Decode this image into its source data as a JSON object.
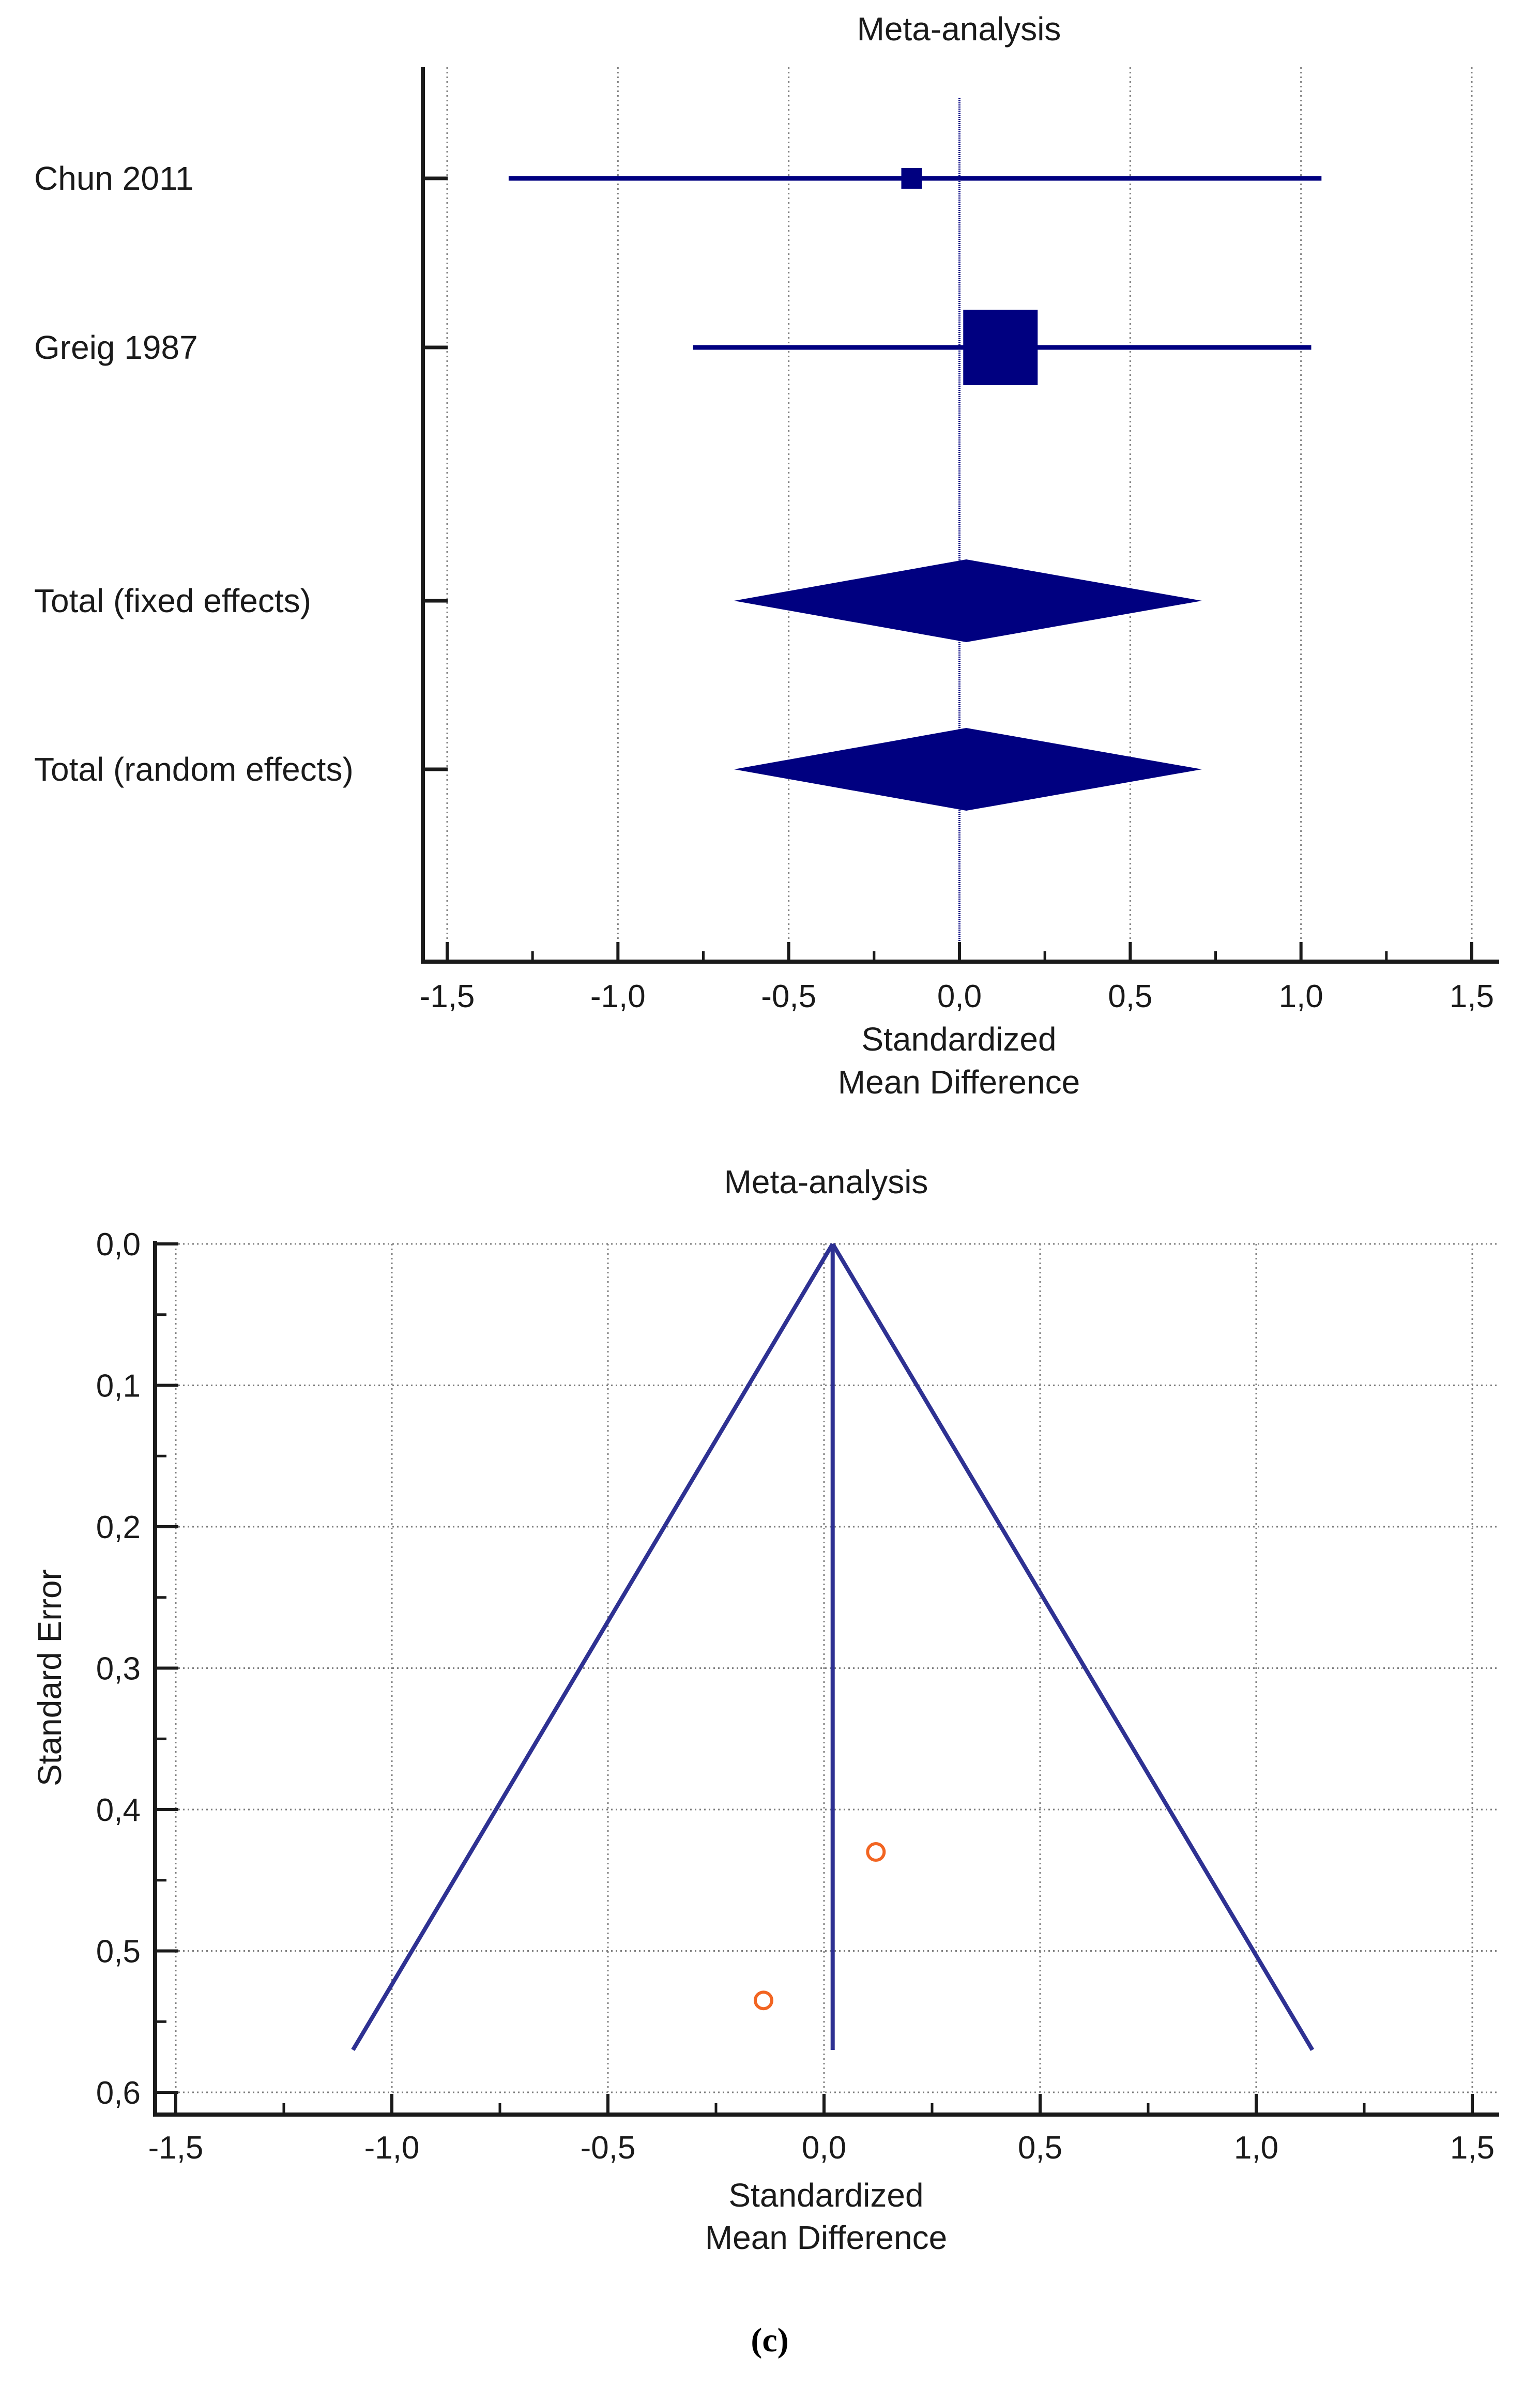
{
  "colors": {
    "series": "#000080",
    "funnel": "#2e3192",
    "study_marker": "#f26522",
    "axis": "#1a1a1a",
    "grid": "#7f7f7f"
  },
  "panel_label": "(c)",
  "chart_data": [
    {
      "type": "forest",
      "title": "Meta-analysis",
      "xlabel_lines": [
        "Standardized",
        "Mean Difference"
      ],
      "xlim": [
        -1.5,
        1.5
      ],
      "xticks": [
        -1.5,
        -1.0,
        -0.5,
        0.0,
        0.5,
        1.0,
        1.5
      ],
      "xtick_labels": [
        "-1,5",
        "-1,0",
        "-0,5",
        "0,0",
        "0,5",
        "1,0",
        "1,5"
      ],
      "grid": "vertical-dotted",
      "rows": [
        {
          "label": "Chun 2011",
          "kind": "study",
          "estimate": -0.14,
          "ci": [
            -1.32,
            1.06
          ],
          "weight_size": "small"
        },
        {
          "label": "Greig 1987",
          "kind": "study",
          "estimate": 0.12,
          "ci": [
            -0.78,
            1.03
          ],
          "weight_size": "large"
        },
        {
          "label": "Total (fixed effects)",
          "kind": "pooled",
          "estimate": 0.02,
          "ci": [
            -0.66,
            0.71
          ]
        },
        {
          "label": "Total (random effects)",
          "kind": "pooled",
          "estimate": 0.02,
          "ci": [
            -0.66,
            0.71
          ]
        }
      ]
    },
    {
      "type": "funnel",
      "title": "Meta-analysis",
      "xlabel_lines": [
        "Standardized",
        "Mean Difference"
      ],
      "ylabel": "Standard Error",
      "xlim": [
        -1.5,
        1.5
      ],
      "ylim": [
        0.0,
        0.6
      ],
      "y_inverted": true,
      "xticks": [
        -1.5,
        -1.0,
        -0.5,
        0.0,
        0.5,
        1.0,
        1.5
      ],
      "xtick_labels": [
        "-1,5",
        "-1,0",
        "-0,5",
        "0,0",
        "0,5",
        "1,0",
        "1,5"
      ],
      "yticks": [
        0.0,
        0.1,
        0.2,
        0.3,
        0.4,
        0.5,
        0.6
      ],
      "ytick_labels": [
        "0,0",
        "0,1",
        "0,2",
        "0,3",
        "0,4",
        "0,5",
        "0,6"
      ],
      "grid": "dotted",
      "pooled_estimate": 0.02,
      "funnel_apex": {
        "x": 0.02,
        "se": 0.0
      },
      "funnel_base": {
        "left_x": -1.09,
        "right_x": 1.13,
        "se": 0.57
      },
      "points": [
        {
          "x": 0.12,
          "se": 0.43
        },
        {
          "x": -0.14,
          "se": 0.535
        }
      ]
    }
  ]
}
